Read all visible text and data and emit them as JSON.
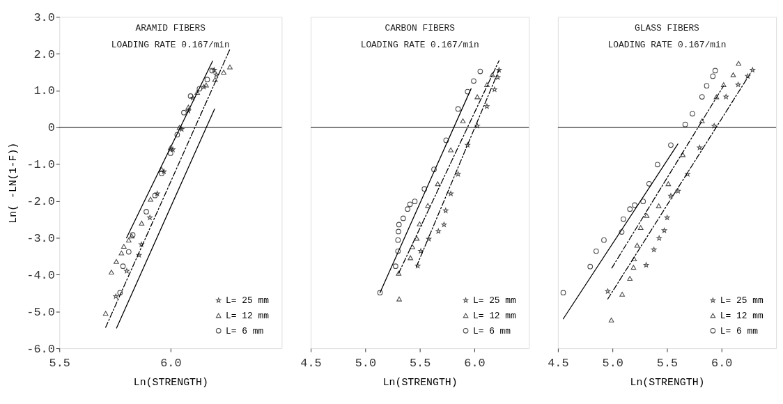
{
  "chart_data": [
    {
      "type": "scatter",
      "title": "ARAMID FIBERS",
      "subtitle": "LOADING RATE 0.167/min",
      "xlabel": "Ln(STRENGTH)",
      "ylabel": "Ln( -LN(1-F))",
      "xlim": [
        5.5,
        6.5
      ],
      "xticks": [
        {
          "value": 5.5,
          "label": "5.5"
        },
        {
          "value": 6.0,
          "label": "6.0"
        }
      ],
      "ylim": [
        -6,
        3
      ],
      "yticks": [
        {
          "value": 3,
          "label": "3.0"
        },
        {
          "value": 2,
          "label": "2.0"
        },
        {
          "value": 1,
          "label": "1.0"
        },
        0,
        {
          "value": -1,
          "label": "-1.0"
        },
        {
          "value": -2,
          "label": "-2.0"
        },
        {
          "value": -3,
          "label": "-3.0"
        },
        {
          "value": -4,
          "label": "-4.0"
        },
        {
          "value": -5,
          "label": "-5.0"
        },
        {
          "value": -6,
          "label": "-6.0"
        }
      ],
      "grid": false,
      "legend": "bottom right",
      "ref_lines": [
        {
          "axis": "y",
          "value": 0
        }
      ],
      "series": [
        {
          "name": "L= 25 mm",
          "marker": "star",
          "color": "#000000",
          "x": [
            5.754,
            5.803,
            5.858,
            5.869,
            5.907,
            5.94,
            5.97,
            6.01,
            6.05,
            6.08,
            6.1,
            6.15,
            6.196,
            6.206
          ],
          "values": [
            -4.59,
            -3.9,
            -3.47,
            -3.18,
            -2.45,
            -1.8,
            -1.2,
            -0.6,
            -0.05,
            0.45,
            0.8,
            1.1,
            1.56,
            1.43
          ]
        },
        {
          "name": "L= 12 mm",
          "marker": "triangle",
          "color": "#000000",
          "x": [
            5.708,
            5.734,
            5.756,
            5.779,
            5.79,
            5.812,
            5.825,
            5.87,
            5.91,
            5.96,
            6.0,
            6.04,
            6.08,
            6.12,
            6.16,
            6.2,
            6.239,
            6.267
          ],
          "values": [
            -5.05,
            -3.93,
            -3.64,
            -3.41,
            -3.23,
            -3.06,
            -2.95,
            -2.6,
            -1.95,
            -1.14,
            -0.55,
            0.0,
            0.55,
            0.95,
            1.15,
            1.3,
            1.5,
            1.64
          ]
        },
        {
          "name": "L= 6 mm",
          "marker": "circle",
          "color": "#000000",
          "x": [
            5.773,
            5.786,
            5.812,
            5.83,
            5.891,
            5.93,
            5.96,
            6.0,
            6.03,
            6.06,
            6.09,
            6.13,
            6.165,
            6.187
          ],
          "values": [
            -4.49,
            -3.77,
            -3.38,
            -2.92,
            -2.29,
            -1.85,
            -1.25,
            -0.7,
            -0.2,
            0.4,
            0.85,
            1.05,
            1.3,
            1.54
          ]
        },
        {
          "type": "line",
          "line_style": "solid",
          "color": "#000000",
          "x": [
            5.802,
            6.189
          ],
          "values": [
            -3.0,
            1.8
          ]
        },
        {
          "type": "line",
          "line_style": "dashed",
          "color": "#000000",
          "x": [
            5.708,
            6.269
          ],
          "values": [
            -5.43,
            2.15
          ]
        },
        {
          "type": "line",
          "line_style": "solid",
          "color": "#000000",
          "x": [
            5.757,
            6.198
          ],
          "values": [
            -5.45,
            0.5
          ]
        }
      ]
    },
    {
      "type": "scatter",
      "title": "CARBON FIBERS",
      "subtitle": "LOADING RATE 0.167/min",
      "xlabel": "Ln(STRENGTH)",
      "xlim": [
        4.5,
        6.5
      ],
      "xticks": [
        {
          "value": 4.5,
          "label": "4.5"
        },
        {
          "value": 5.0,
          "label": "5.0"
        },
        {
          "value": 5.5,
          "label": "5.5"
        },
        {
          "value": 6.0,
          "label": "6.0"
        }
      ],
      "ylim": [
        -6,
        3
      ],
      "tick_labels": "x",
      "grid": false,
      "legend": "bottom right",
      "ref_lines": [
        {
          "axis": "y",
          "value": 0
        }
      ],
      "series": [
        {
          "name": "L= 25 mm",
          "marker": "star",
          "color": "#000000",
          "x": [
            5.481,
            5.509,
            5.582,
            5.67,
            5.722,
            5.737,
            5.784,
            5.851,
            5.938,
            6.027,
            6.115,
            6.185,
            6.215,
            6.226
          ],
          "values": [
            -3.76,
            -3.36,
            -3.03,
            -2.82,
            -2.64,
            -2.26,
            -1.8,
            -1.27,
            -0.48,
            0.04,
            0.57,
            1.03,
            1.36,
            1.56
          ]
        },
        {
          "name": "L= 12 mm",
          "marker": "triangle",
          "color": "#000000",
          "x": [
            5.311,
            5.306,
            5.414,
            5.432,
            5.472,
            5.498,
            5.574,
            5.664,
            5.784,
            5.895,
            6.027,
            6.115,
            6.164
          ],
          "values": [
            -4.66,
            -3.96,
            -3.54,
            -3.24,
            -3.01,
            -2.62,
            -2.12,
            -1.53,
            -0.61,
            0.18,
            0.83,
            1.16,
            1.43
          ]
        },
        {
          "name": "L= 6 mm",
          "marker": "circle",
          "color": "#000000",
          "x": [
            5.135,
            5.278,
            5.3,
            5.3,
            5.304,
            5.309,
            5.348,
            5.388,
            5.41,
            5.454,
            5.542,
            5.63,
            5.741,
            5.851,
            5.938,
            5.994,
            6.054
          ],
          "values": [
            -4.49,
            -3.77,
            -3.36,
            -3.06,
            -2.83,
            -2.64,
            -2.47,
            -2.22,
            -2.09,
            -2.01,
            -1.67,
            -1.14,
            -0.35,
            0.5,
            0.97,
            1.26,
            1.52
          ]
        },
        {
          "type": "line",
          "line_style": "dashed",
          "color": "#000000",
          "x": [
            5.469,
            6.226
          ],
          "values": [
            -3.78,
            1.56
          ]
        },
        {
          "type": "line",
          "line_style": "dashed",
          "color": "#000000",
          "x": [
            5.306,
            6.226
          ],
          "values": [
            -3.96,
            1.81
          ]
        },
        {
          "type": "line",
          "line_style": "solid",
          "color": "#000000",
          "x": [
            5.135,
            5.97
          ],
          "values": [
            -4.49,
            1.05
          ]
        }
      ]
    },
    {
      "type": "scatter",
      "title": "GLASS FIBERS",
      "subtitle": "LOADING RATE 0.167/min",
      "xlabel": "Ln(STRENGTH)",
      "xlim": [
        4.5,
        6.5
      ],
      "xticks": [
        {
          "value": 4.5,
          "label": "4.5"
        },
        {
          "value": 5.0,
          "label": "5.0"
        },
        {
          "value": 5.5,
          "label": "5.5"
        },
        {
          "value": 6.0,
          "label": "6.0"
        }
      ],
      "ylim": [
        -6,
        3
      ],
      "tick_labels": "x",
      "grid": false,
      "legend": "bottom right",
      "ref_lines": [
        {
          "axis": "y",
          "value": 0
        }
      ],
      "series": [
        {
          "name": "L= 25 mm",
          "marker": "star",
          "color": "#000000",
          "x": [
            4.957,
            5.309,
            5.38,
            5.428,
            5.475,
            5.501,
            5.535,
            5.601,
            5.689,
            5.799,
            5.932,
            6.041,
            6.152,
            6.24,
            6.284
          ],
          "values": [
            -4.45,
            -3.74,
            -3.32,
            -3.01,
            -2.8,
            -2.45,
            -1.86,
            -1.73,
            -1.27,
            -0.55,
            0.04,
            0.83,
            1.16,
            1.39,
            1.56
          ]
        },
        {
          "name": "L= 12 mm",
          "marker": "triangle",
          "color": "#000000",
          "x": [
            4.99,
            5.089,
            5.16,
            5.193,
            5.199,
            5.226,
            5.259,
            5.314,
            5.424,
            5.512,
            5.645,
            5.821,
            5.953,
            6.019,
            6.107,
            6.156
          ],
          "values": [
            -5.23,
            -4.53,
            -4.1,
            -3.8,
            -3.57,
            -3.2,
            -2.72,
            -2.39,
            -2.13,
            -1.53,
            -0.74,
            0.18,
            0.83,
            1.16,
            1.43,
            1.74
          ]
        },
        {
          "name": "L= 6 mm",
          "marker": "circle",
          "color": "#000000",
          "x": [
            4.549,
            4.796,
            4.851,
            4.922,
            5.085,
            5.1,
            5.16,
            5.204,
            5.281,
            5.336,
            5.413,
            5.535,
            5.667,
            5.733,
            5.821,
            5.864,
            5.92,
            5.942
          ],
          "values": [
            -4.49,
            -3.78,
            -3.36,
            -3.06,
            -2.84,
            -2.49,
            -2.22,
            -2.11,
            -2.01,
            -1.53,
            -1.01,
            -0.48,
            0.08,
            0.37,
            0.83,
            1.13,
            1.39,
            1.54
          ]
        },
        {
          "type": "line",
          "line_style": "dashed",
          "color": "#000000",
          "x": [
            4.957,
            6.262
          ],
          "values": [
            -4.66,
            1.46
          ]
        },
        {
          "type": "line",
          "line_style": "dashed",
          "color": "#000000",
          "x": [
            4.994,
            6.019
          ],
          "values": [
            -3.82,
            1.13
          ]
        },
        {
          "type": "line",
          "line_style": "solid",
          "color": "#000000",
          "x": [
            4.549,
            5.6
          ],
          "values": [
            -5.2,
            -0.45
          ]
        }
      ]
    }
  ]
}
